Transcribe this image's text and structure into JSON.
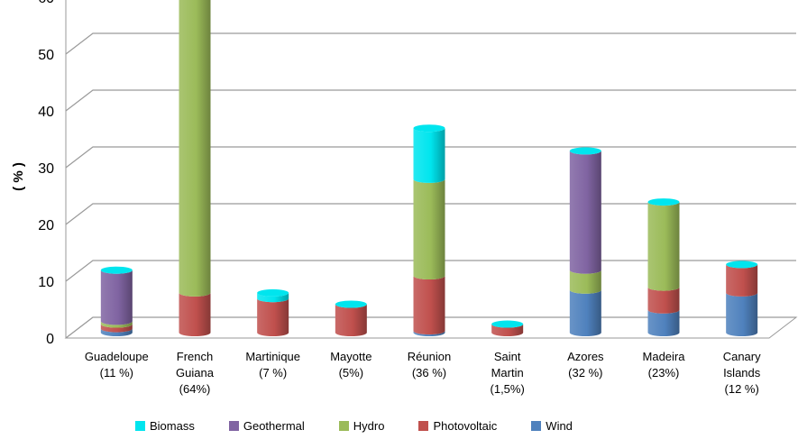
{
  "chart_data": {
    "type": "bar",
    "stacked": true,
    "three_d": true,
    "title": "",
    "xlabel": "",
    "ylabel": "( % )",
    "ylim": [
      0,
      70
    ],
    "yticks": [
      "0",
      "10",
      "20",
      "30",
      "40",
      "50",
      "60",
      "70"
    ],
    "grid": true,
    "legend_position": "bottom",
    "categories": [
      [
        "Guadeloupe",
        "(11 %)"
      ],
      [
        "French",
        "Guiana",
        "(64%)"
      ],
      [
        "Martinique",
        "(7 %)"
      ],
      [
        "Mayotte",
        "(5%)"
      ],
      [
        "Réunion",
        "(36 %)"
      ],
      [
        "Saint",
        "Martin",
        "(1,5%)"
      ],
      [
        "Azores",
        "(32 %)"
      ],
      [
        "Madeira",
        "(23%)"
      ],
      [
        "Canary",
        "Islands",
        "(12 %)"
      ]
    ],
    "series": [
      {
        "name": "Wind",
        "color": "#4f81bd",
        "values": [
          0.7,
          0,
          0,
          0,
          0.3,
          0,
          7.5,
          4,
          7
        ]
      },
      {
        "name": "Photovoltaic",
        "color": "#c0504d",
        "values": [
          0.8,
          7,
          6,
          5,
          9.7,
          1.5,
          0,
          4,
          5
        ]
      },
      {
        "name": "Hydro",
        "color": "#9bbb59",
        "values": [
          0.5,
          57,
          0,
          0,
          17,
          0,
          3.5,
          15,
          0
        ]
      },
      {
        "name": "Geothermal",
        "color": "#8064a2",
        "values": [
          9,
          0,
          0,
          0,
          0,
          0,
          21,
          0,
          0
        ]
      },
      {
        "name": "Biomass",
        "color": "#00e5ee",
        "values": [
          0,
          0,
          1,
          0,
          9,
          0,
          0,
          0,
          0
        ]
      }
    ]
  },
  "legend": {
    "items": [
      {
        "label": "Biomass",
        "color": "#00e5ee"
      },
      {
        "label": "Geothermal",
        "color": "#8064a2"
      },
      {
        "label": "Hydro",
        "color": "#9bbb59"
      },
      {
        "label": "Photovoltaic",
        "color": "#c0504d"
      },
      {
        "label": "Wind",
        "color": "#4f81bd"
      }
    ]
  }
}
